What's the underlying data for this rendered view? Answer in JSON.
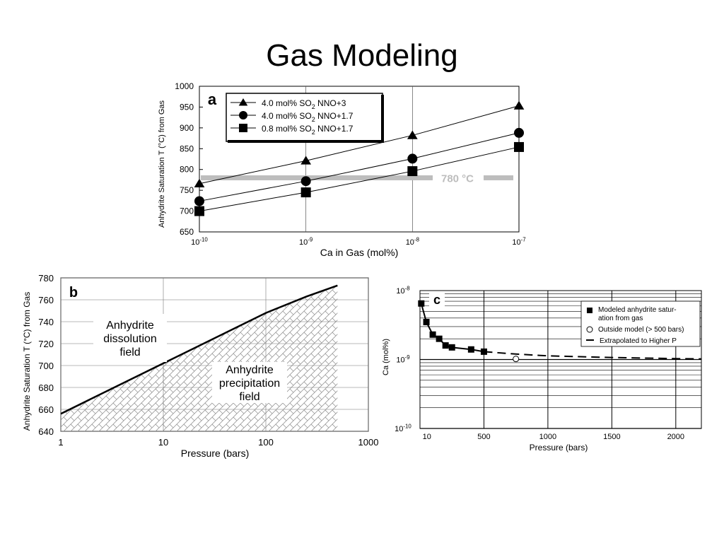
{
  "slide": {
    "title": "Gas Modeling"
  },
  "chart_data": [
    {
      "panel": "a",
      "type": "scatter",
      "xlabel": "Ca in Gas (mol%)",
      "ylabel": "Anhydrite Saturation T (°C) from Gas",
      "xscale": "log",
      "xlim": [
        1e-10,
        1e-07
      ],
      "ylim": [
        650,
        1000
      ],
      "x_ticks": [
        {
          "value": 1e-10,
          "base": "10",
          "exp": "-10"
        },
        {
          "value": 1e-09,
          "base": "10",
          "exp": "-9"
        },
        {
          "value": 1e-08,
          "base": "10",
          "exp": "-8"
        },
        {
          "value": 1e-07,
          "base": "10",
          "exp": "-7"
        }
      ],
      "y_ticks": [
        650,
        700,
        750,
        800,
        850,
        900,
        950,
        1000
      ],
      "grid": "vertical decades",
      "legend_position": "top-left",
      "series": [
        {
          "name": "4.0 mol% SO",
          "sub": "2",
          "tail": " NNO+3",
          "marker": "triangle",
          "x": [
            1e-10,
            1e-09,
            1e-08,
            1e-07
          ],
          "y": [
            766,
            821,
            882,
            953
          ]
        },
        {
          "name": "4.0 mol% SO",
          "sub": "2",
          "tail": " NNO+1.7",
          "marker": "circle",
          "x": [
            1e-10,
            1e-09,
            1e-08,
            1e-07
          ],
          "y": [
            724,
            772,
            826,
            888
          ]
        },
        {
          "name": "0.8 mol% SO",
          "sub": "2",
          "tail": " NNO+1.7",
          "marker": "square",
          "x": [
            1e-10,
            1e-09,
            1e-08,
            1e-07
          ],
          "y": [
            700,
            745,
            796,
            854
          ]
        }
      ],
      "reference_line": {
        "y": 780,
        "label": "780 °C",
        "color": "#bdbdbd"
      }
    },
    {
      "panel": "b",
      "type": "area",
      "xlabel": "Pressure (bars)",
      "ylabel": "Anhydrite Saturation T (°C) from Gas",
      "xscale": "log",
      "xlim": [
        1,
        1000
      ],
      "ylim": [
        640,
        780
      ],
      "x_ticks": [
        1,
        10,
        100,
        1000
      ],
      "y_ticks": [
        640,
        660,
        680,
        700,
        720,
        740,
        760,
        780
      ],
      "grid": "both",
      "series": [
        {
          "x": [
            1,
            10,
            100,
            250,
            500
          ],
          "y": [
            656,
            702,
            748,
            763,
            773
          ]
        }
      ],
      "annotations": [
        {
          "text": [
            "Anhydrite",
            "dissolution",
            "field"
          ]
        },
        {
          "text": [
            "Anhydrite",
            "precipitation",
            "field"
          ]
        }
      ]
    },
    {
      "panel": "c",
      "type": "scatter",
      "xlabel": "Pressure (bars)",
      "ylabel": "Ca (mol%)",
      "yscale": "log",
      "xlim": [
        0,
        2200
      ],
      "ylim": [
        1e-10,
        1e-08
      ],
      "x_ticks": [
        10,
        500,
        1000,
        1500,
        2000
      ],
      "y_ticks": [
        {
          "value": 1e-08,
          "base": "10",
          "exp": "-8"
        },
        {
          "value": 1e-09,
          "base": "10",
          "exp": "-9"
        },
        {
          "value": 1e-10,
          "base": "10",
          "exp": "-10"
        }
      ],
      "grid": "both",
      "legend_position": "top-right",
      "series": [
        {
          "name": "Modeled anhydrite satur-|ation from gas",
          "marker": "square",
          "x": [
            10,
            50,
            100,
            150,
            200,
            250,
            400,
            500
          ],
          "y": [
            6.5e-09,
            3.5e-09,
            2.3e-09,
            2e-09,
            1.6e-09,
            1.5e-09,
            1.4e-09,
            1.3e-09
          ]
        },
        {
          "name": "Outside model (> 500 bars)",
          "marker": "open-circle",
          "x": [
            750
          ],
          "y": [
            1.02e-09
          ]
        },
        {
          "name": "Extrapolated to Higher P",
          "marker": "dashed-line",
          "x": [
            500,
            750,
            1000,
            1500,
            2000,
            2200
          ],
          "y": [
            1.3e-09,
            1.2e-09,
            1.13e-09,
            1.07e-09,
            1.03e-09,
            1.02e-09
          ]
        }
      ]
    }
  ]
}
